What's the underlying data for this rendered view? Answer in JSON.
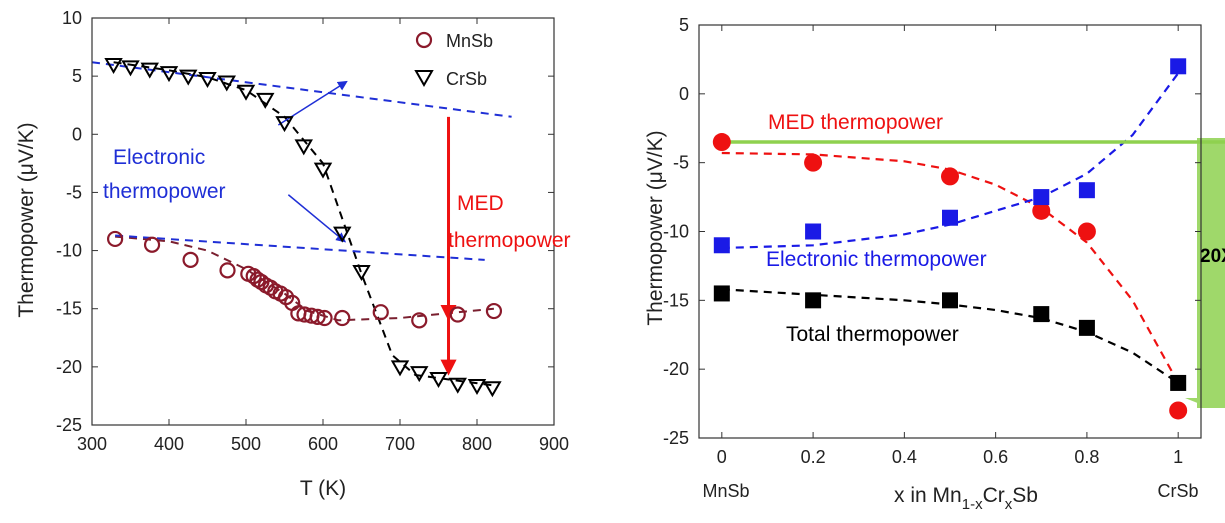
{
  "chart_data": [
    {
      "type": "scatter",
      "panel": "left",
      "title": "",
      "xlabel": "T (K)",
      "ylabel": "Thermopower (μV/K)",
      "xlim": [
        300,
        900
      ],
      "ylim": [
        -25,
        10
      ],
      "xticks": [
        300,
        400,
        500,
        600,
        700,
        800,
        900
      ],
      "yticks": [
        -25,
        -20,
        -15,
        -10,
        -5,
        0,
        5,
        10
      ],
      "legend_position": "top-right",
      "grid": false,
      "series": [
        {
          "name": "MnSb",
          "marker": "open-circle",
          "color": "#8b1a2b",
          "x": [
            330,
            378,
            428,
            476,
            503,
            510,
            515,
            520,
            526,
            532,
            538,
            545,
            552,
            560,
            568,
            576,
            585,
            593,
            602,
            625,
            675,
            725,
            775,
            822
          ],
          "y": [
            -9,
            -9.5,
            -10.8,
            -11.7,
            -12,
            -12.2,
            -12.5,
            -12.7,
            -13,
            -13.2,
            -13.5,
            -13.7,
            -14,
            -14.5,
            -15.4,
            -15.5,
            -15.6,
            -15.7,
            -15.8,
            -15.8,
            -15.3,
            -16,
            -15.5,
            -15.2
          ]
        },
        {
          "name": "CrSb",
          "marker": "open-triangle-down",
          "color": "#000000",
          "x": [
            328,
            350,
            375,
            400,
            425,
            450,
            475,
            500,
            525,
            550,
            575,
            600,
            625,
            650,
            700,
            725,
            750,
            775,
            800,
            820
          ],
          "y": [
            6,
            5.8,
            5.6,
            5.3,
            5,
            4.8,
            4.5,
            3.7,
            3,
            1,
            -1,
            -3,
            -8.5,
            -11.8,
            -20,
            -20.5,
            -21,
            -21.5,
            -21.6,
            -21.8
          ]
        }
      ],
      "fits": [
        {
          "name": "MnSb guide",
          "style": "dashed",
          "color": "#7a1f2f",
          "x": [
            330,
            400,
            450,
            500,
            550,
            580,
            620,
            700,
            822
          ],
          "y": [
            -8.8,
            -9.2,
            -10,
            -11.6,
            -13.7,
            -15.2,
            -16,
            -15.8,
            -15
          ]
        },
        {
          "name": "CrSb guide",
          "style": "dashed",
          "color": "#000000",
          "x": [
            328,
            400,
            450,
            500,
            550,
            600,
            650,
            690,
            720,
            822
          ],
          "y": [
            6.2,
            5.5,
            4.9,
            3.8,
            1.5,
            -2.5,
            -12,
            -19,
            -20.7,
            -21.6
          ]
        },
        {
          "name": "electronic upper",
          "style": "dashed",
          "color": "#1f2fd6",
          "x": [
            300,
            845
          ],
          "y": [
            6.2,
            1.5
          ]
        },
        {
          "name": "electronic lower",
          "style": "dashed",
          "color": "#1f2fd6",
          "x": [
            330,
            810
          ],
          "y": [
            -8.7,
            -10.8
          ]
        }
      ],
      "annotations": [
        {
          "text_lines": [
            "Electronic",
            "thermopower"
          ],
          "color": "#1f2fd6"
        },
        {
          "text_lines": [
            "MED",
            "thermopower"
          ],
          "color": "#ee1111"
        }
      ],
      "arrows": [
        {
          "kind": "blue-pointer",
          "from": [
            542,
            0.8
          ],
          "to": [
            630,
            4.5
          ]
        },
        {
          "kind": "blue-pointer",
          "from": [
            555,
            -5.2
          ],
          "to": [
            628,
            -9.2
          ]
        },
        {
          "kind": "red-long",
          "from": [
            763,
            1.5
          ],
          "to": [
            763,
            -20.5
          ]
        },
        {
          "kind": "red-short",
          "from": [
            763,
            -9.8
          ],
          "to": [
            763,
            -15.8
          ]
        }
      ]
    },
    {
      "type": "scatter",
      "panel": "right",
      "title": "",
      "xlabel": "x in Mn",
      "xlabel_sub1": "1-x",
      "xlabel_mid": "Cr",
      "xlabel_sub2": "x",
      "xlabel_end": "Sb",
      "ylabel": "Thermopower (μV/K)",
      "xlim": [
        0,
        1
      ],
      "ylim": [
        -25,
        5
      ],
      "xticks": [
        0,
        0.2,
        0.4,
        0.6,
        0.8,
        1
      ],
      "yticks": [
        -25,
        -20,
        -15,
        -10,
        -5,
        0,
        5
      ],
      "x_end_labels": [
        "MnSb",
        "CrSb"
      ],
      "grid": false,
      "series": [
        {
          "name": "MED thermopower",
          "marker": "filled-circle",
          "color": "#ee1111",
          "x": [
            0,
            0.2,
            0.5,
            0.7,
            0.8,
            1
          ],
          "y": [
            -3.5,
            -5,
            -6,
            -8.5,
            -10,
            -23
          ]
        },
        {
          "name": "Electronic thermopower",
          "marker": "filled-square",
          "color": "#1a1ae6",
          "x": [
            0,
            0.2,
            0.5,
            0.7,
            0.8,
            1
          ],
          "y": [
            -11,
            -10,
            -9,
            -7.5,
            -7,
            2
          ]
        },
        {
          "name": "Total thermopower",
          "marker": "filled-square",
          "color": "#000000",
          "x": [
            0,
            0.2,
            0.5,
            0.7,
            0.8,
            1
          ],
          "y": [
            -14.5,
            -15,
            -15,
            -16,
            -17,
            -21
          ]
        }
      ],
      "fits": [
        {
          "name": "MED fit",
          "style": "dashed",
          "color": "#ee1111",
          "x": [
            0,
            0.2,
            0.4,
            0.5,
            0.6,
            0.7,
            0.8,
            0.9,
            1
          ],
          "y": [
            -4.3,
            -4.4,
            -4.9,
            -5.5,
            -6.6,
            -8.3,
            -10.8,
            -15,
            -21
          ]
        },
        {
          "name": "Electronic fit",
          "style": "dashed",
          "color": "#1a1ae6",
          "x": [
            0,
            0.2,
            0.4,
            0.5,
            0.6,
            0.7,
            0.8,
            0.9,
            1
          ],
          "y": [
            -11.2,
            -11,
            -10.2,
            -9.5,
            -8.5,
            -7.5,
            -5.8,
            -3,
            1.5
          ]
        },
        {
          "name": "Total fit",
          "style": "dashed",
          "color": "#000000",
          "x": [
            0,
            0.2,
            0.4,
            0.5,
            0.6,
            0.7,
            0.8,
            0.9,
            1
          ],
          "y": [
            -14.2,
            -14.6,
            -15,
            -15.3,
            -15.7,
            -16.3,
            -17.3,
            -18.8,
            -21
          ]
        }
      ],
      "labels": [
        {
          "text": "MED thermopower",
          "color": "#ee1111"
        },
        {
          "text": "Electronic thermopower",
          "color": "#1a1ae6"
        },
        {
          "text": "Total thermopower",
          "color": "#000000"
        }
      ],
      "green_bar": {
        "color": "#8fd14f",
        "y": -3.5,
        "label": "20X"
      }
    }
  ]
}
